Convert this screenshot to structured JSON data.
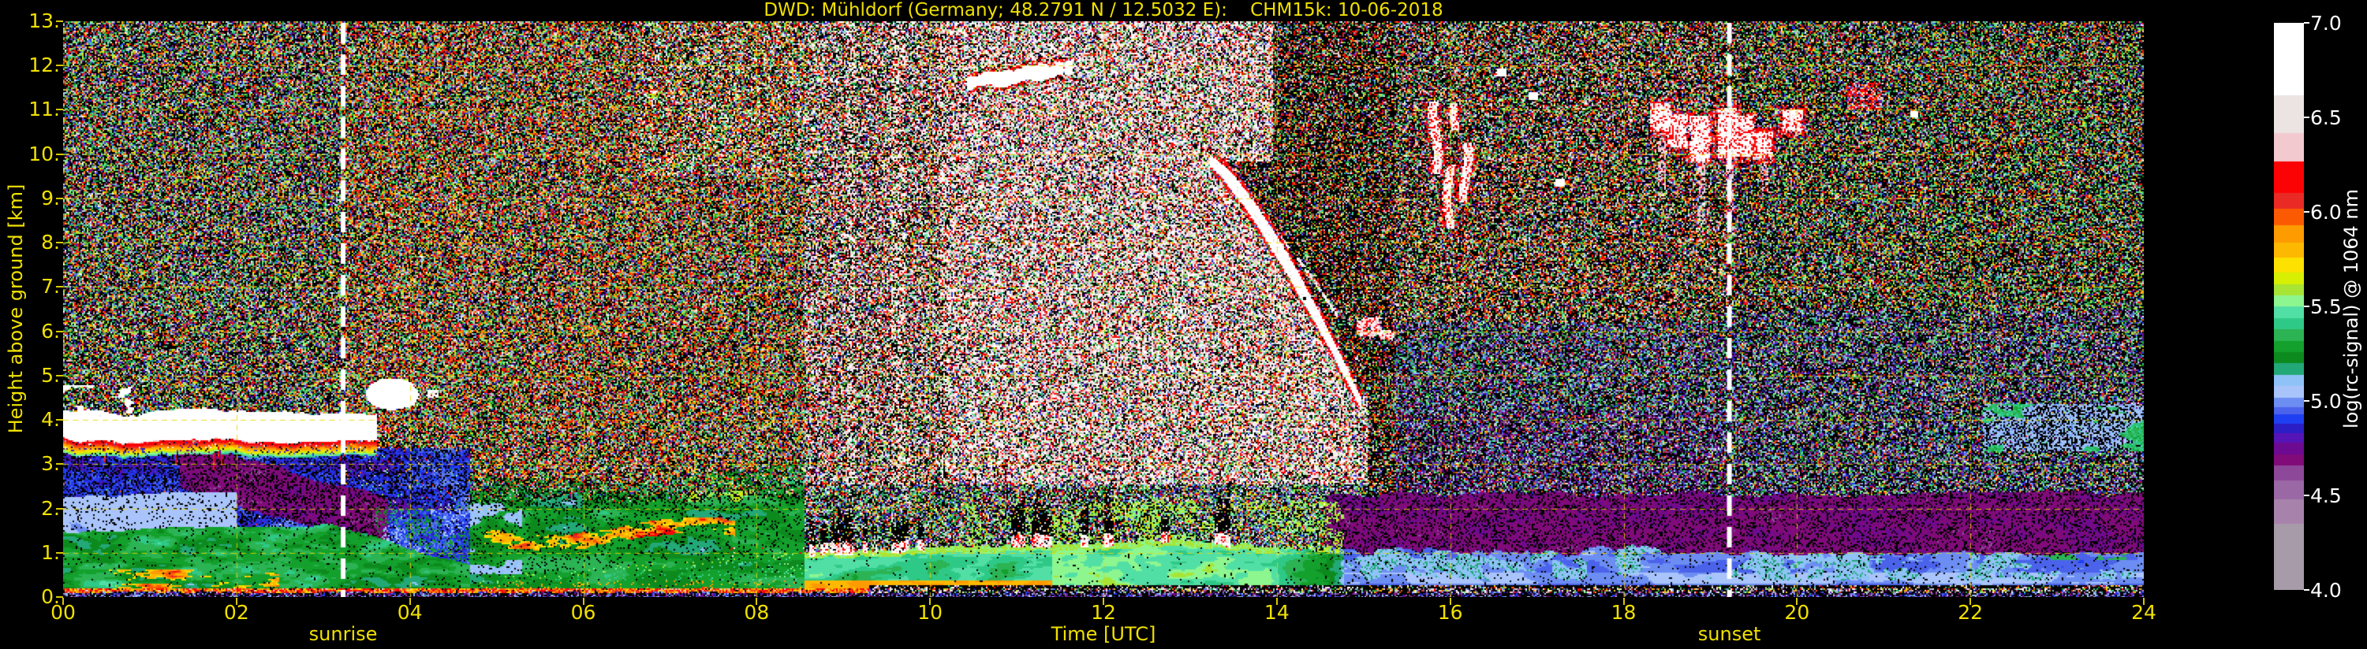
{
  "title": "DWD: Mühldorf (Germany; 48.2791 N / 12.5032 E):    CHM15k: 10-06-2018",
  "axes": {
    "xlabel": "Time [UTC]",
    "ylabel": "Height above ground [km]",
    "x_tick_labels": [
      "00",
      "02",
      "04",
      "06",
      "08",
      "10",
      "12",
      "14",
      "16",
      "18",
      "20",
      "22",
      "24"
    ],
    "y_tick_labels": [
      "0.",
      "1.",
      "2.",
      "3.",
      "4.",
      "5.",
      "6.",
      "7.",
      "8.",
      "9.",
      "10.",
      "11.",
      "12.",
      "13."
    ]
  },
  "annotations": {
    "sunrise_label": "sunrise",
    "sunset_label": "sunset"
  },
  "colorbar": {
    "label": "log(rc-signal) @ 1064 nm",
    "tick_labels": [
      "7.0",
      "6.5",
      "6.0",
      "5.5",
      "5.0",
      "4.5",
      "4.0"
    ],
    "range": [
      4.0,
      7.0
    ]
  },
  "colors": {
    "background": "#000000",
    "axis_text": "#f0e000",
    "grid": "#ebd700",
    "sun_line": "#ffffff",
    "colorbar_text": "#ffffff"
  },
  "chart_data": {
    "type": "heatmap",
    "title": "DWD: Mühldorf (Germany; 48.2791 N / 12.5032 E):    CHM15k: 10-06-2018",
    "xlabel": "Time [UTC]",
    "ylabel": "Height above ground [km]",
    "x_range_hours": [
      0,
      24
    ],
    "y_range_km": [
      0,
      13
    ],
    "grid": "dashed yellow, 1 km horizontal / 2 h vertical",
    "legend_position": "right colorbar",
    "sun": {
      "sunrise_utc": 3.23,
      "sunset_utc": 19.22
    },
    "colormap": {
      "label": "log(rc-signal) @ 1064 nm",
      "under_range_color": "#000000",
      "stops": [
        [
          4.35,
          "#a79aa9"
        ],
        [
          4.48,
          "#a783ab"
        ],
        [
          4.58,
          "#9a68a4"
        ],
        [
          4.66,
          "#8d4899"
        ],
        [
          4.72,
          "#800b79"
        ],
        [
          4.78,
          "#6c0a92"
        ],
        [
          4.83,
          "#5514b6"
        ],
        [
          4.88,
          "#2b1ec4"
        ],
        [
          4.93,
          "#1f3ff2"
        ],
        [
          4.97,
          "#4b63ea"
        ],
        [
          5.02,
          "#6c8df2"
        ],
        [
          5.08,
          "#a9c4fb"
        ],
        [
          5.14,
          "#8fc3f7"
        ],
        [
          5.2,
          "#23a878"
        ],
        [
          5.26,
          "#0d8a1e"
        ],
        [
          5.32,
          "#13a02c"
        ],
        [
          5.38,
          "#2bb354"
        ],
        [
          5.44,
          "#2fc987"
        ],
        [
          5.5,
          "#52dfa6"
        ],
        [
          5.56,
          "#8df68f"
        ],
        [
          5.62,
          "#a8e434"
        ],
        [
          5.68,
          "#d6ef02"
        ],
        [
          5.76,
          "#fde101"
        ],
        [
          5.84,
          "#fdb801"
        ],
        [
          5.93,
          "#fd9b01"
        ],
        [
          6.02,
          "#fc5a02"
        ],
        [
          6.1,
          "#ea2a24"
        ],
        [
          6.27,
          "#fb0205"
        ],
        [
          6.42,
          "#f2c9cf"
        ],
        [
          6.62,
          "#ece3e3"
        ],
        [
          7.01,
          "#ffffff"
        ]
      ]
    },
    "features": {
      "night_stratocumulus_deck": {
        "t": [
          0,
          3.6
        ],
        "base_km": 3.4,
        "top_km": 4.2,
        "note": "white deck, red-orange-yellow fringe below base, red virga streaks to ~2.9 km, extra blobs to 4.7 km before 01:00"
      },
      "sunrise_cloud_blob": {
        "t": [
          3.5,
          4.1
        ],
        "h": [
          4.2,
          4.95
        ]
      },
      "small_cloud_dot": {
        "t": 4.27,
        "h": 4.58
      },
      "cirrus_streak": {
        "t": [
          10.45,
          11.6
        ],
        "h": [
          11.6,
          12.2
        ]
      },
      "descending_virga": {
        "t": [
          13.2,
          15.0
        ],
        "h_start_km": 9.85,
        "h_end_km": 4.6,
        "note": "bright white curved fall streak with red fringe and dark holes"
      },
      "evening_cluster_1": {
        "streaks": [
          [
            15.83,
            9.55,
            11.2,
            0.055
          ],
          [
            15.99,
            8.35,
            9.75,
            0.05
          ],
          [
            16.18,
            8.9,
            10.25,
            0.05
          ],
          [
            16.07,
            10.55,
            11.15,
            0.045
          ]
        ]
      },
      "small_high_clouds": [
        [
          16.6,
          11.85
        ],
        [
          16.95,
          11.3
        ],
        [
          17.26,
          9.35
        ]
      ],
      "evening_cluster_2": {
        "blobs": [
          [
            18.42,
            10.5,
            11.15,
            1.6
          ],
          [
            18.62,
            10.15,
            10.9,
            0
          ],
          [
            18.88,
            9.85,
            10.85,
            1.9
          ],
          [
            19.2,
            9.9,
            11.05,
            1.5
          ],
          [
            19.38,
            9.95,
            10.85,
            0
          ],
          [
            19.6,
            9.9,
            10.5,
            0.8
          ],
          [
            19.95,
            10.5,
            11.0,
            0
          ]
        ]
      },
      "red_cloud_patch": {
        "t": [
          20.6,
          20.95
        ],
        "h": [
          11.0,
          11.6
        ]
      },
      "late_white_dot": {
        "t": 21.35,
        "h": 10.9
      }
    },
    "background_regions": [
      "0-3.2 h: dense multicolour speckle noise aloft; green aerosol layers 0-1.8 km with yellow-orange streaks 0.2-0.6 km; blue noise 2-3.3 km; maroon patch descending 3->1.3 km between 1.4-3.6 h",
      "3.2-8.5 h: orange/green speckle aloft; layered green aerosol 0-2.6 km with yellow-orange band near 1.4 km (red core 6.5-7.4 h); lavender-blue pockets",
      "5-14.5 h: convective boundary layer, green with yellow core, cumulus caps (white/red) at 0.9-1.3 km with dark streaks above, 7.3-13.5 h",
      "8.5-15 h: very bright white/red daytime background noise aloft, bright vertical striping 8.5-9.6 h, sharp dark edge along descending virga",
      "15-19.2 h: red/green twilight speckle aloft, blue-purple speckle 2.5-6 km, maroon band 1.2-2.4 km, pale blue boundary layer 0-1.2 km with spiky plume tops",
      "19.2-24 h: green/red night speckle aloft, blue layer 0-1 km, maroon wisp descending 2.2->1.0 km, pale-blue and teal patches 3.3-4.3 km after 22 h, bright orange ground-return line 0-0.2 km before ~9.3 h, dark speckle strip after"
    ]
  }
}
